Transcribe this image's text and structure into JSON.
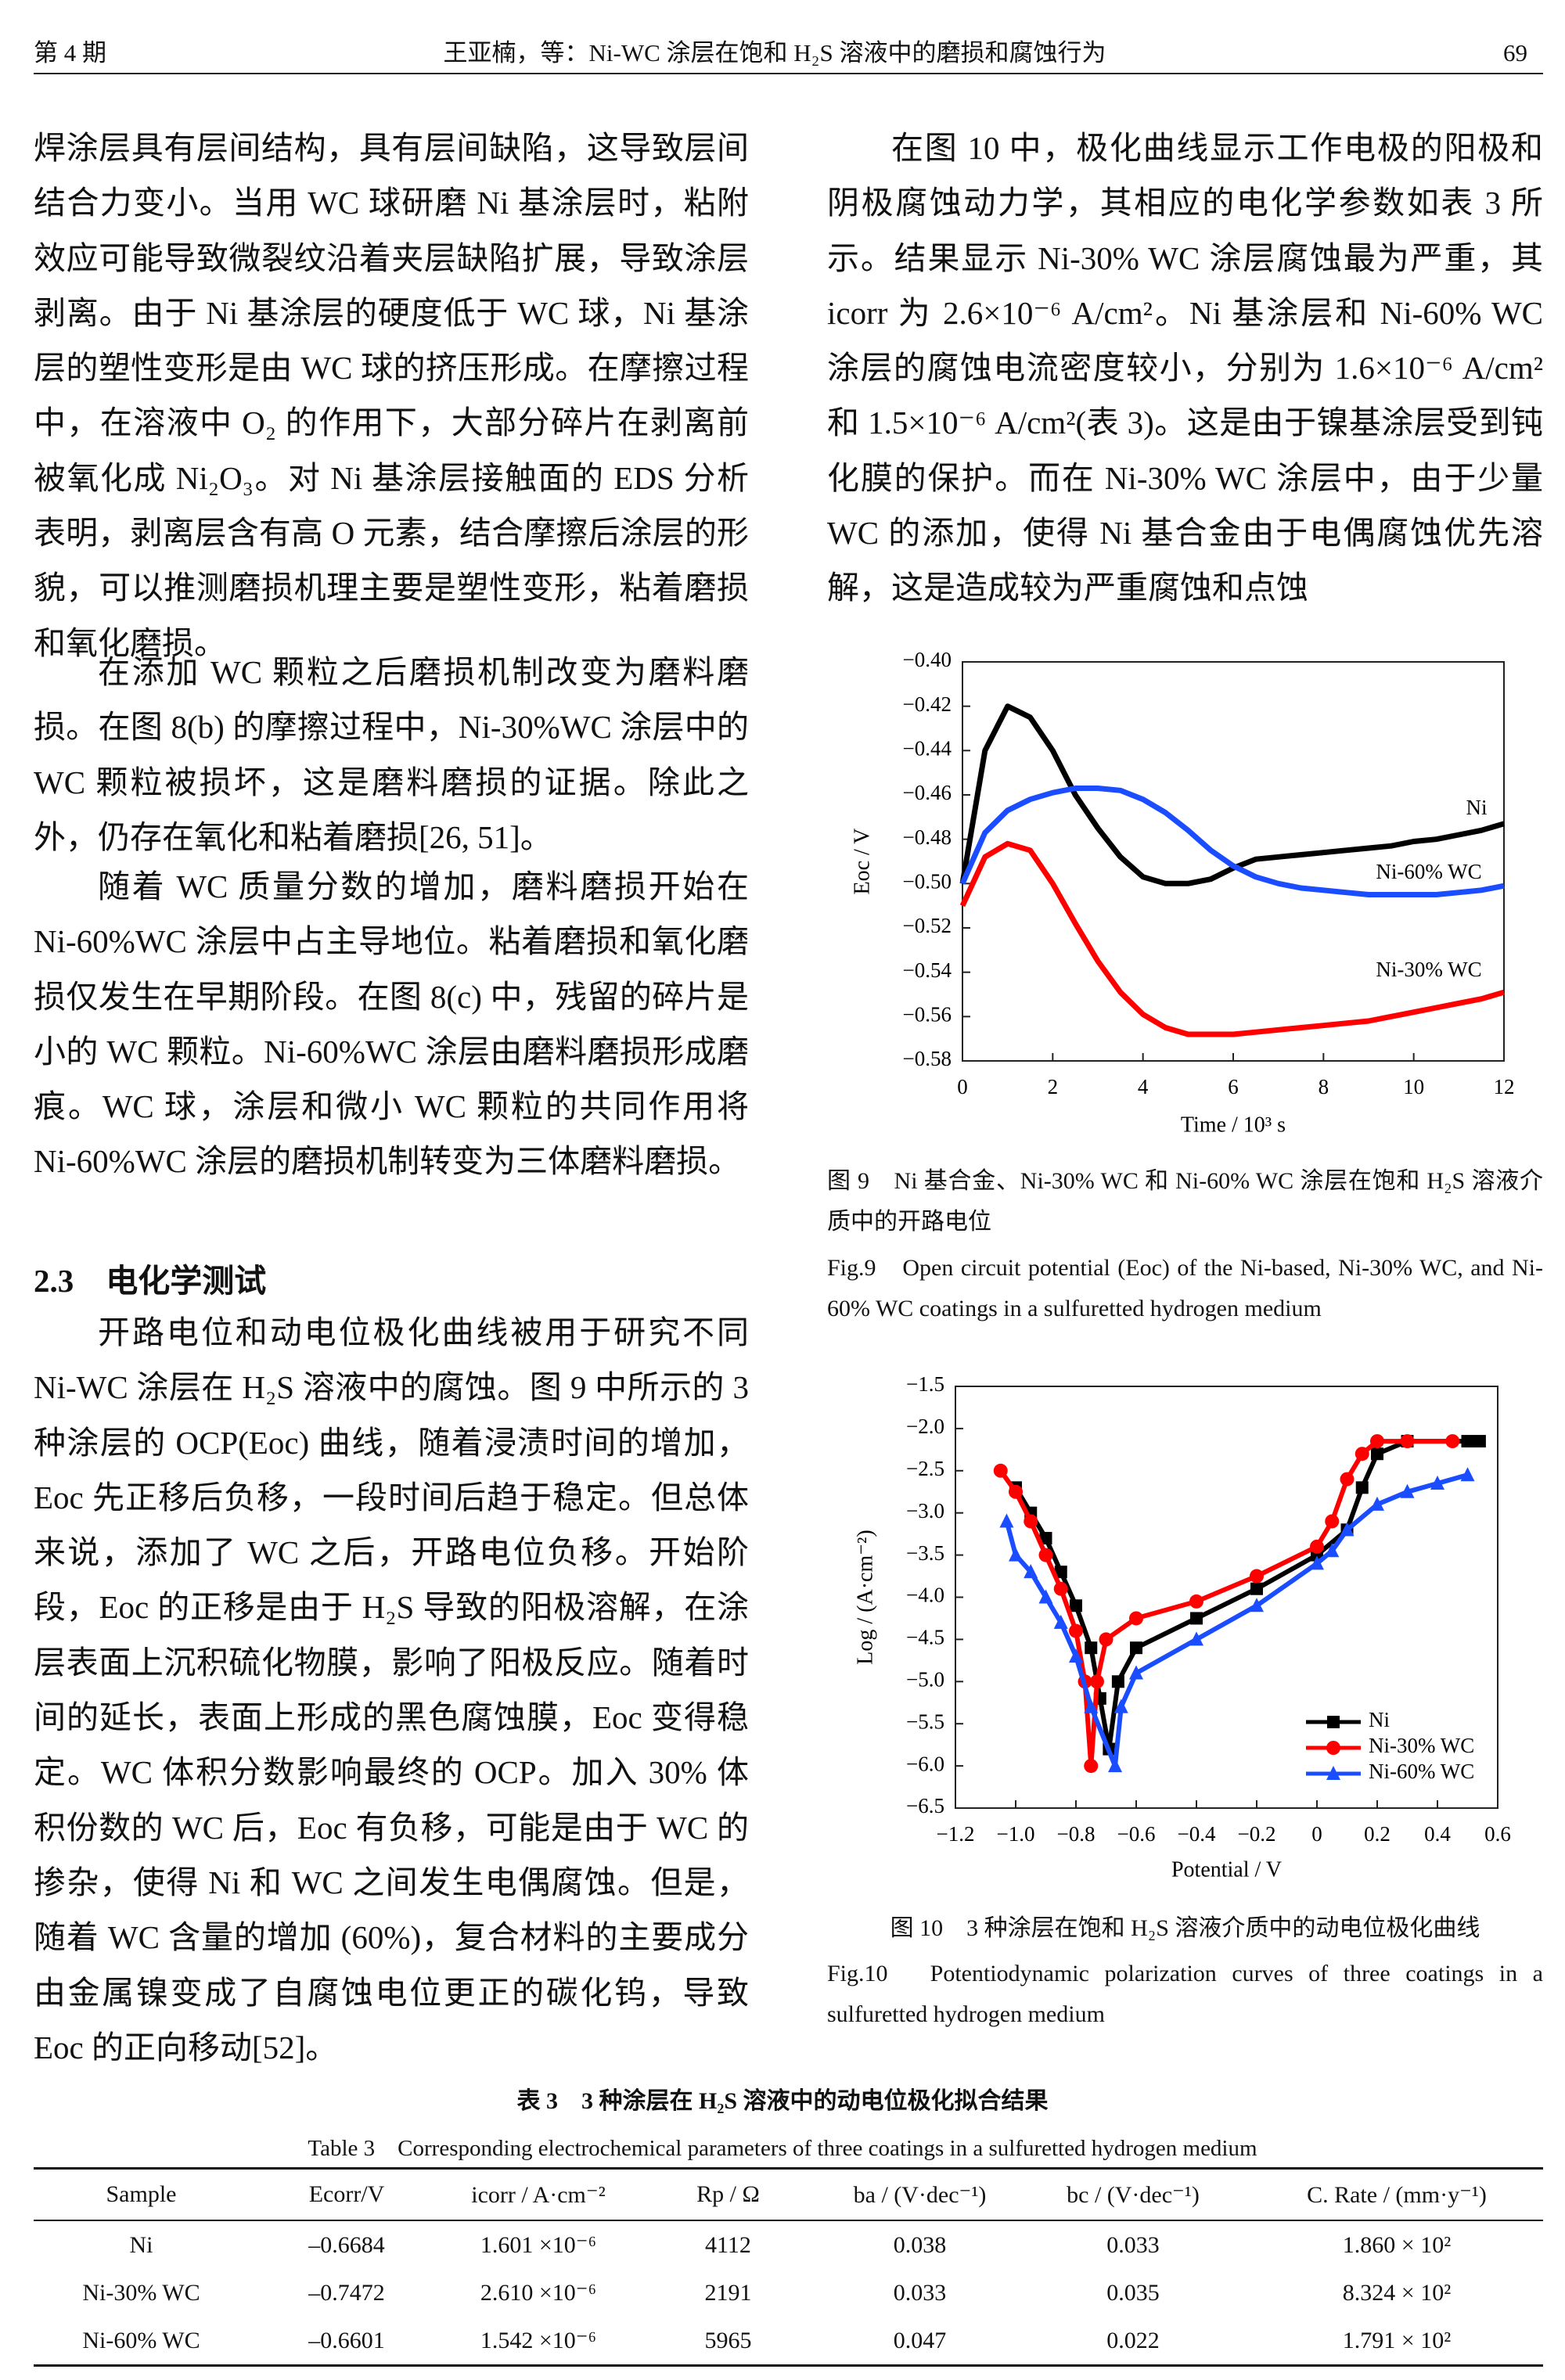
{
  "header": {
    "issue": "第 4 期",
    "running_title": "王亚楠，等：Ni-WC 涂层在饱和 H₂S 溶液中的磨损和腐蚀行为",
    "page_number": "69"
  },
  "body": {
    "left": [
      "焊涂层具有层间结构，具有层间缺陷，这导致层间结合力变小。当用 WC 球研磨 Ni 基涂层时，粘附效应可能导致微裂纹沿着夹层缺陷扩展，导致涂层剥离。由于 Ni 基涂层的硬度低于 WC 球，Ni 基涂层的塑性变形是由 WC 球的挤压形成。在摩擦过程中，在溶液中 O₂ 的作用下，大部分碎片在剥离前被氧化成 Ni₂O₃。对 Ni 基涂层接触面的 EDS 分析表明，剥离层含有高 O 元素，结合摩擦后涂层的形貌，可以推测磨损机理主要是塑性变形，粘着磨损和氧化磨损。",
      "在添加 WC 颗粒之后磨损机制改变为磨料磨损。在图 8(b) 的摩擦过程中，Ni-30%WC 涂层中的 WC 颗粒被损坏，这是磨料磨损的证据。除此之外，仍存在氧化和粘着磨损[26, 51]。",
      "随着 WC 质量分数的增加，磨料磨损开始在 Ni-60%WC 涂层中占主导地位。粘着磨损和氧化磨损仅发生在早期阶段。在图 8(c) 中，残留的碎片是小的 WC 颗粒。Ni-60%WC 涂层由磨料磨损形成磨痕。WC 球，涂层和微小 WC 颗粒的共同作用将 Ni-60%WC 涂层的磨损机制转变为三体磨料磨损。"
    ],
    "section_heading": "2.3　电化学测试",
    "left_after": [
      "开路电位和动电位极化曲线被用于研究不同 Ni-WC 涂层在 H₂S 溶液中的腐蚀。图 9 中所示的 3 种涂层的 OCP(Eoc) 曲线，随着浸渍时间的增加，Eoc 先正移后负移，一段时间后趋于稳定。但总体来说，添加了 WC 之后，开路电位负移。开始阶段，Eoc 的正移是由于 H₂S 导致的阳极溶解，在涂层表面上沉积硫化物膜，影响了阳极反应。随着时间的延长，表面上形成的黑色腐蚀膜，Eoc 变得稳定。WC 体积分数影响最终的 OCP。加入 30% 体积份数的 WC 后，Eoc 有负移，可能是由于 WC 的掺杂，使得 Ni 和 WC 之间发生电偶腐蚀。但是，随着 WC 含量的增加 (60%)，复合材料的主要成分由金属镍变成了自腐蚀电位更正的碳化钨，导致 Eoc 的正向移动[52]。"
    ],
    "right": [
      "在图 10 中，极化曲线显示工作电极的阳极和阴极腐蚀动力学，其相应的电化学参数如表 3 所示。结果显示 Ni-30% WC 涂层腐蚀最为严重，其 icorr 为 2.6×10⁻⁶ A/cm²。Ni 基涂层和 Ni-60% WC 涂层的腐蚀电流密度较小，分别为 1.6×10⁻⁶ A/cm² 和 1.5×10⁻⁶ A/cm²(表 3)。这是由于镍基涂层受到钝化膜的保护。而在 Ni-30% WC 涂层中，由于少量 WC 的添加，使得 Ni 基合金由于电偶腐蚀优先溶解，这是造成较为严重腐蚀和点蚀"
    ]
  },
  "figures": [
    {
      "caption_cn": "图 9　Ni 基合金、Ni-30% WC 和 Ni-60% WC 涂层在饱和 H₂S 溶液介质中的开路电位",
      "caption_en": "Fig.9　Open circuit potential (Eoc) of the Ni-based, Ni-30% WC, and Ni-60% WC coatings in a sulfuretted hydrogen medium"
    },
    {
      "caption_cn": "图 10　3 种涂层在饱和 H₂S 溶液介质中的动电位极化曲线",
      "caption_en": "Fig.10　Potentiodynamic polarization curves of three coatings in a sulfuretted hydrogen medium"
    }
  ],
  "chart_data": [
    {
      "type": "line",
      "xlabel": "Time / 10³ s",
      "ylabel": "Eoc / V",
      "legend": "direct labels",
      "xlim": [
        0,
        12
      ],
      "xticks": [
        0,
        2,
        4,
        6,
        8,
        10,
        12
      ],
      "ylim": [
        -0.58,
        -0.4
      ],
      "yticks": [
        {
          "value": -0.4,
          "label": "−0.40"
        },
        {
          "value": -0.42,
          "label": "−0.42"
        },
        {
          "value": -0.44,
          "label": "−0.44"
        },
        {
          "value": -0.46,
          "label": "−0.46"
        },
        {
          "value": -0.48,
          "label": "−0.48"
        },
        {
          "value": -0.5,
          "label": "−0.50"
        },
        {
          "value": -0.52,
          "label": "−0.52"
        },
        {
          "value": -0.54,
          "label": "−0.54"
        },
        {
          "value": -0.56,
          "label": "−0.56"
        },
        {
          "value": -0.58,
          "label": "−0.58"
        }
      ],
      "x": [
        0,
        0.5,
        1,
        1.5,
        2,
        2.5,
        3,
        3.5,
        4,
        4.5,
        5,
        5.5,
        6,
        6.5,
        7,
        7.5,
        8,
        8.5,
        9,
        9.5,
        10,
        10.5,
        11,
        11.5,
        12
      ],
      "series": [
        {
          "name": "Ni",
          "color": "#000000",
          "values": [
            -0.5,
            -0.44,
            -0.42,
            -0.425,
            -0.44,
            -0.46,
            -0.475,
            -0.488,
            -0.497,
            -0.5,
            -0.5,
            -0.498,
            -0.493,
            -0.489,
            -0.488,
            -0.487,
            -0.486,
            -0.485,
            -0.484,
            -0.483,
            -0.481,
            -0.48,
            -0.478,
            -0.476,
            -0.473
          ]
        },
        {
          "name": "Ni-60% WC",
          "color": "#1a4dff",
          "values": [
            -0.5,
            -0.477,
            -0.467,
            -0.462,
            -0.459,
            -0.457,
            -0.457,
            -0.458,
            -0.462,
            -0.468,
            -0.476,
            -0.485,
            -0.492,
            -0.497,
            -0.5,
            -0.502,
            -0.503,
            -0.504,
            -0.505,
            -0.505,
            -0.505,
            -0.505,
            -0.504,
            -0.503,
            -0.501
          ]
        },
        {
          "name": "Ni-30% WC",
          "color": "#ff0000",
          "values": [
            -0.51,
            -0.488,
            -0.482,
            -0.485,
            -0.5,
            -0.518,
            -0.535,
            -0.549,
            -0.559,
            -0.565,
            -0.568,
            -0.568,
            -0.568,
            -0.567,
            -0.566,
            -0.565,
            -0.564,
            -0.563,
            -0.562,
            -0.56,
            -0.558,
            -0.556,
            -0.554,
            -0.552,
            -0.549
          ]
        }
      ]
    },
    {
      "type": "line",
      "xlabel": "Potential / V",
      "ylabel": "Log / (A·cm⁻²)",
      "legend": "lower right",
      "xlim": [
        -1.2,
        0.6
      ],
      "xticks": [
        {
          "value": -1.2,
          "label": "−1.2"
        },
        {
          "value": -1.0,
          "label": "−1.0"
        },
        {
          "value": -0.8,
          "label": "−0.8"
        },
        {
          "value": -0.6,
          "label": "−0.6"
        },
        {
          "value": -0.4,
          "label": "−0.4"
        },
        {
          "value": -0.2,
          "label": "−0.2"
        },
        0,
        0.2,
        0.4,
        0.6
      ],
      "ylim": [
        -6.5,
        -1.5
      ],
      "yticks": [
        {
          "value": -1.5,
          "label": "−1.5"
        },
        {
          "value": -2.0,
          "label": "−2.0"
        },
        {
          "value": -2.5,
          "label": "−2.5"
        },
        {
          "value": -3.0,
          "label": "−3.0"
        },
        {
          "value": -3.5,
          "label": "−3.5"
        },
        {
          "value": -4.0,
          "label": "−4.0"
        },
        {
          "value": -4.5,
          "label": "−4.5"
        },
        {
          "value": -5.0,
          "label": "−5.0"
        },
        {
          "value": -5.5,
          "label": "−5.5"
        },
        {
          "value": -6.0,
          "label": "−6.0"
        },
        {
          "value": -6.5,
          "label": "−6.5"
        }
      ],
      "series": [
        {
          "name": "Ni",
          "color": "#000000",
          "marker": "square",
          "x": [
            -1.0,
            -0.95,
            -0.9,
            -0.85,
            -0.8,
            -0.75,
            -0.72,
            -0.69,
            -0.66,
            -0.6,
            -0.4,
            -0.2,
            0,
            0.1,
            0.15,
            0.2,
            0.3,
            0.5,
            0.54
          ],
          "values": [
            -2.7,
            -3.0,
            -3.3,
            -3.7,
            -4.1,
            -4.6,
            -5.2,
            -5.8,
            -5.0,
            -4.6,
            -4.25,
            -3.9,
            -3.5,
            -3.2,
            -2.7,
            -2.3,
            -2.15,
            -2.15,
            -2.15
          ]
        },
        {
          "name": "Ni-30% WC",
          "color": "#ff0000",
          "marker": "circle",
          "x": [
            -1.05,
            -1.0,
            -0.95,
            -0.9,
            -0.85,
            -0.8,
            -0.77,
            -0.75,
            -0.73,
            -0.7,
            -0.6,
            -0.4,
            -0.2,
            0,
            0.05,
            0.1,
            0.15,
            0.2,
            0.3,
            0.45
          ],
          "values": [
            -2.5,
            -2.75,
            -3.1,
            -3.5,
            -3.9,
            -4.4,
            -5.0,
            -6.0,
            -5.0,
            -4.5,
            -4.25,
            -4.05,
            -3.75,
            -3.4,
            -3.1,
            -2.6,
            -2.3,
            -2.15,
            -2.15,
            -2.15
          ]
        },
        {
          "name": "Ni-60% WC",
          "color": "#1a4dff",
          "marker": "triangle",
          "x": [
            -1.03,
            -1.0,
            -0.95,
            -0.9,
            -0.85,
            -0.8,
            -0.75,
            -0.67,
            -0.65,
            -0.6,
            -0.4,
            -0.2,
            0,
            0.05,
            0.1,
            0.2,
            0.3,
            0.4,
            0.5
          ],
          "values": [
            -3.1,
            -3.5,
            -3.7,
            -4.0,
            -4.3,
            -4.7,
            -5.3,
            -6.0,
            -5.3,
            -4.9,
            -4.5,
            -4.1,
            -3.6,
            -3.45,
            -3.2,
            -2.9,
            -2.75,
            -2.65,
            -2.55
          ]
        }
      ]
    }
  ],
  "table": {
    "title_cn": "表 3　3 种涂层在 H₂S 溶液中的动电位极化拟合结果",
    "title_en": "Table 3　Corresponding electrochemical parameters of three coatings in a sulfuretted hydrogen medium",
    "columns": [
      "Sample",
      "Ecorr/V",
      "icorr / A·cm⁻²",
      "Rp / Ω",
      "ba / (V·dec⁻¹)",
      "bc / (V·dec⁻¹)",
      "C. Rate / (mm·y⁻¹)"
    ],
    "rows": [
      [
        "Ni",
        "–0.6684",
        "1.601 ×10⁻⁶",
        "4112",
        "0.038",
        "0.033",
        "1.860 × 10²"
      ],
      [
        "Ni-30% WC",
        "–0.7472",
        "2.610 ×10⁻⁶",
        "2191",
        "0.033",
        "0.035",
        "8.324 × 10²"
      ],
      [
        "Ni-60% WC",
        "–0.6601",
        "1.542 ×10⁻⁶",
        "5965",
        "0.047",
        "0.022",
        "1.791 × 10²"
      ]
    ]
  }
}
